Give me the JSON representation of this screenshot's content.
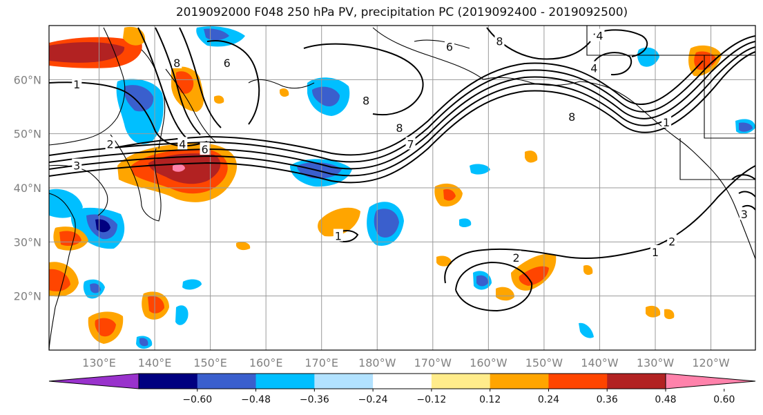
{
  "title": "2019092000 F048 250 hPa PV, precipitation PC (2019092400 - 2019092500)",
  "map": {
    "lon_range": [
      121,
      248
    ],
    "lat_range": [
      10,
      70
    ],
    "lat_ticks": [
      {
        "lat": 60,
        "label": "60°N"
      },
      {
        "lat": 50,
        "label": "50°N"
      },
      {
        "lat": 40,
        "label": "40°N"
      },
      {
        "lat": 30,
        "label": "30°N"
      },
      {
        "lat": 20,
        "label": "20°N"
      }
    ],
    "lon_ticks": [
      {
        "lon": 130,
        "label": "130°E"
      },
      {
        "lon": 140,
        "label": "140°E"
      },
      {
        "lon": 150,
        "label": "150°E"
      },
      {
        "lon": 160,
        "label": "160°E"
      },
      {
        "lon": 170,
        "label": "170°E"
      },
      {
        "lon": 180,
        "label": "180°W"
      },
      {
        "lon": 190,
        "label": "170°W"
      },
      {
        "lon": 200,
        "label": "160°W"
      },
      {
        "lon": 210,
        "label": "150°W"
      },
      {
        "lon": 220,
        "label": "140°W"
      },
      {
        "lon": 230,
        "label": "130°W"
      },
      {
        "lon": 240,
        "label": "120°W"
      }
    ],
    "gridlines": true
  },
  "contour_labels": [
    {
      "text": "1",
      "lon": 126,
      "lat": 59
    },
    {
      "text": "2",
      "lon": 132,
      "lat": 48
    },
    {
      "text": "3",
      "lon": 126,
      "lat": 44
    },
    {
      "text": "4",
      "lon": 145,
      "lat": 48
    },
    {
      "text": "6",
      "lon": 149,
      "lat": 47
    },
    {
      "text": "8",
      "lon": 144,
      "lat": 63
    },
    {
      "text": "6",
      "lon": 153,
      "lat": 63
    },
    {
      "text": "6",
      "lon": 193,
      "lat": 66
    },
    {
      "text": "8",
      "lon": 178,
      "lat": 56
    },
    {
      "text": "8",
      "lon": 184,
      "lat": 51
    },
    {
      "text": "7",
      "lon": 186,
      "lat": 48
    },
    {
      "text": "8",
      "lon": 215,
      "lat": 53
    },
    {
      "text": "8",
      "lon": 202,
      "lat": 67
    },
    {
      "text": "4",
      "lon": 220,
      "lat": 68
    },
    {
      "text": "4",
      "lon": 219,
      "lat": 62
    },
    {
      "text": "1",
      "lon": 232,
      "lat": 52
    },
    {
      "text": "2",
      "lon": 205,
      "lat": 27
    },
    {
      "text": "2",
      "lon": 233,
      "lat": 30
    },
    {
      "text": "1",
      "lon": 230,
      "lat": 28
    },
    {
      "text": "1",
      "lon": 173,
      "lat": 31
    },
    {
      "text": "3",
      "lon": 246,
      "lat": 35
    }
  ],
  "colorbar": {
    "levels": [
      -0.6,
      -0.48,
      -0.36,
      -0.24,
      -0.12,
      0.12,
      0.24,
      0.36,
      0.48,
      0.6
    ],
    "tick_labels": [
      "−0.60",
      "−0.48",
      "−0.36",
      "−0.24",
      "−0.12",
      "0.12",
      "0.24",
      "0.36",
      "0.48",
      "0.60"
    ],
    "colors": [
      "#9932cc",
      "#000080",
      "#3a5fcd",
      "#00bfff",
      "#b2e2ff",
      "#ffffff",
      "#ffec8b",
      "#ffa500",
      "#ff4500",
      "#b22222",
      "#ff82ab"
    ],
    "extend": "both"
  }
}
